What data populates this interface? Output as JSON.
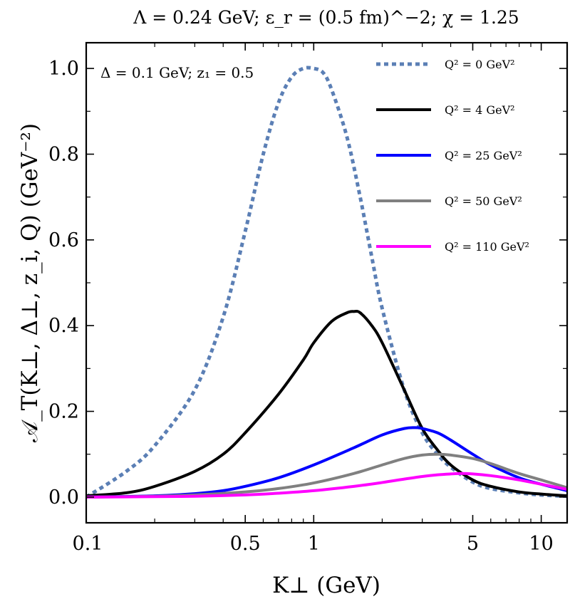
{
  "chart_data": {
    "type": "line",
    "title": "Λ = 0.24 GeV;  ε_r = (0.5 fm)^−2;  χ = 1.25",
    "annotation": "Δ = 0.1 GeV; z₁ = 0.5",
    "xlabel": "K⊥ (GeV)",
    "ylabel": "𝒜_T(K⊥, Δ⊥, z_i, Q) (GeV⁻²)",
    "xscale": "log",
    "xlim": [
      0.1,
      13
    ],
    "ylim": [
      -0.06,
      1.06
    ],
    "xticks": [
      {
        "value": 0.1,
        "label": "0.1"
      },
      {
        "value": 0.5,
        "label": "0.5"
      },
      {
        "value": 1,
        "label": "1"
      },
      {
        "value": 5,
        "label": "5"
      },
      {
        "value": 10,
        "label": "10"
      }
    ],
    "yticks": [
      {
        "value": 0.0,
        "label": "0.0"
      },
      {
        "value": 0.2,
        "label": "0.2"
      },
      {
        "value": 0.4,
        "label": "0.4"
      },
      {
        "value": 0.6,
        "label": "0.6"
      },
      {
        "value": 0.8,
        "label": "0.8"
      },
      {
        "value": 1.0,
        "label": "1.0"
      }
    ],
    "legend_position": "top-right",
    "series": [
      {
        "name": "Q² = 0 GeV²",
        "color": "#5b7fb5",
        "dashed": true,
        "x": [
          0.1,
          0.15,
          0.2,
          0.3,
          0.4,
          0.5,
          0.6,
          0.7,
          0.8,
          0.9,
          1.0,
          1.1,
          1.2,
          1.4,
          1.6,
          1.8,
          2.0,
          2.5,
          3.0,
          3.5,
          4.0,
          5.0,
          6.0,
          8.0,
          10.0,
          13.0
        ],
        "values": [
          0.0,
          0.06,
          0.12,
          0.25,
          0.42,
          0.62,
          0.8,
          0.92,
          0.98,
          1.0,
          1.0,
          0.99,
          0.95,
          0.84,
          0.7,
          0.56,
          0.44,
          0.25,
          0.15,
          0.1,
          0.07,
          0.035,
          0.02,
          0.01,
          0.005,
          0.002
        ]
      },
      {
        "name": "Q² = 4 GeV²",
        "color": "#000000",
        "dashed": false,
        "x": [
          0.1,
          0.15,
          0.2,
          0.3,
          0.4,
          0.5,
          0.7,
          0.9,
          1.0,
          1.2,
          1.4,
          1.5,
          1.6,
          1.8,
          2.0,
          2.5,
          3.0,
          3.5,
          4.0,
          5.0,
          6.0,
          8.0,
          10.0,
          13.0
        ],
        "values": [
          0.003,
          0.01,
          0.025,
          0.06,
          0.1,
          0.15,
          0.24,
          0.32,
          0.36,
          0.41,
          0.43,
          0.433,
          0.43,
          0.4,
          0.36,
          0.25,
          0.16,
          0.11,
          0.075,
          0.04,
          0.025,
          0.012,
          0.007,
          0.003
        ]
      },
      {
        "name": "Q² = 25 GeV²",
        "color": "#0000ff",
        "dashed": false,
        "x": [
          0.1,
          0.2,
          0.3,
          0.4,
          0.5,
          0.7,
          1.0,
          1.5,
          2.0,
          2.5,
          2.8,
          3.0,
          3.5,
          4.0,
          5.0,
          6.0,
          8.0,
          10.0,
          13.0
        ],
        "values": [
          0.0,
          0.003,
          0.008,
          0.015,
          0.025,
          0.045,
          0.075,
          0.115,
          0.145,
          0.16,
          0.162,
          0.16,
          0.15,
          0.133,
          0.1,
          0.075,
          0.045,
          0.03,
          0.015
        ]
      },
      {
        "name": "Q² = 50 GeV²",
        "color": "#808080",
        "dashed": false,
        "x": [
          0.1,
          0.2,
          0.3,
          0.5,
          0.7,
          1.0,
          1.5,
          2.0,
          2.5,
          3.0,
          3.5,
          4.0,
          5.0,
          6.0,
          8.0,
          10.0,
          13.0
        ],
        "values": [
          0.0,
          0.002,
          0.005,
          0.012,
          0.02,
          0.033,
          0.055,
          0.075,
          0.09,
          0.098,
          0.1,
          0.098,
          0.09,
          0.078,
          0.055,
          0.04,
          0.022
        ]
      },
      {
        "name": "Q² = 110 GeV²",
        "color": "#ff00ff",
        "dashed": false,
        "x": [
          0.1,
          0.2,
          0.3,
          0.5,
          0.7,
          1.0,
          1.5,
          2.0,
          2.5,
          3.0,
          3.5,
          4.0,
          4.5,
          5.0,
          6.0,
          7.0,
          8.0,
          10.0,
          13.0
        ],
        "values": [
          0.0,
          0.001,
          0.002,
          0.005,
          0.009,
          0.015,
          0.025,
          0.034,
          0.042,
          0.048,
          0.052,
          0.054,
          0.055,
          0.054,
          0.05,
          0.045,
          0.04,
          0.03,
          0.018
        ]
      }
    ]
  }
}
